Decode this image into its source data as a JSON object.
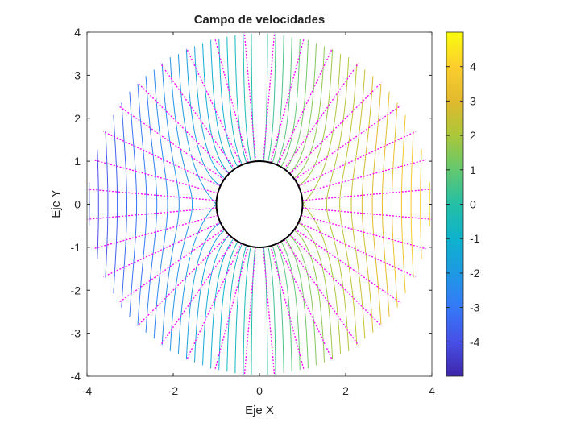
{
  "chart_data": {
    "type": "contour",
    "title": "Campo de velocidades",
    "xlabel": "Eje X",
    "ylabel": "Eje Y",
    "xlim": [
      -4,
      4
    ],
    "ylim": [
      -4,
      4
    ],
    "xticks": [
      -4,
      -2,
      0,
      2,
      4
    ],
    "xtick_labels": [
      "-4",
      "-2",
      "0",
      "2",
      "4"
    ],
    "yticks": [
      -4,
      -3,
      -2,
      -1,
      0,
      1,
      2,
      3,
      4
    ],
    "ytick_labels": [
      "-4",
      "-3",
      "-2",
      "-1",
      "0",
      "1",
      "2",
      "3",
      "4"
    ],
    "grid": false,
    "domain_radius": 4,
    "cylinder": {
      "center": [
        0,
        0
      ],
      "radius": 1
    },
    "contour_levels": {
      "min": -4.8,
      "max": 4.8,
      "step": 0.2
    },
    "colorbar": {
      "colormap": "parula",
      "range": [
        -5,
        5
      ],
      "ticks": [
        -4,
        -3,
        -2,
        -1,
        0,
        1,
        2,
        3,
        4
      ],
      "tick_labels": [
        "-4",
        "-3",
        "-2",
        "-1",
        "0",
        "1",
        "2",
        "3",
        "4"
      ]
    },
    "radial_lines": {
      "count": 36,
      "from_radius": 1,
      "to_radius": 4
    },
    "colors": {
      "streamlines": "#ff00ff",
      "cylinder": "#000000"
    }
  }
}
